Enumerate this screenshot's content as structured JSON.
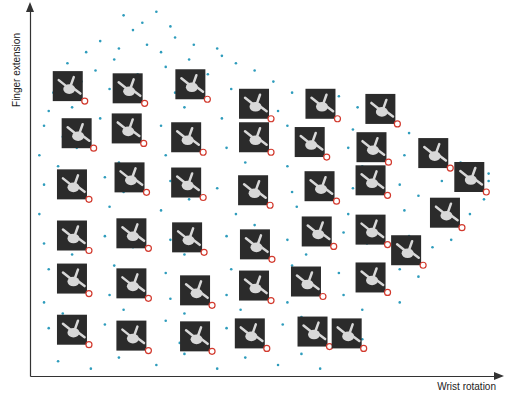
{
  "chart_data": {
    "type": "scatter",
    "x_label": "Wrist rotation",
    "y_label": "Finger extension",
    "xlim": [
      0,
      100
    ],
    "ylim": [
      0,
      100
    ],
    "xticks": [],
    "yticks": [],
    "tick_labels": false,
    "series": [
      {
        "color": "#2e9cbc",
        "marker": "dot",
        "x": [
          20,
          24,
          27,
          22,
          30,
          15,
          19,
          25,
          31,
          35,
          28,
          40,
          12,
          8,
          14,
          18,
          23,
          29,
          34,
          38,
          44,
          48,
          52,
          41,
          11,
          5,
          9,
          17,
          21,
          31,
          33,
          43,
          47,
          56,
          60,
          66,
          70,
          53,
          4,
          3,
          7,
          15,
          20,
          28,
          32,
          41,
          45,
          55,
          58,
          69,
          73,
          81,
          84,
          62,
          88,
          2,
          6,
          10,
          19,
          29,
          33,
          42,
          46,
          55,
          59,
          68,
          71,
          80,
          85,
          92,
          95,
          98,
          88,
          3,
          8,
          16,
          20,
          30,
          34,
          40,
          46,
          56,
          60,
          69,
          72,
          79,
          83,
          88,
          94,
          97,
          98,
          2,
          7,
          17,
          21,
          28,
          35,
          44,
          48,
          57,
          61,
          68,
          74,
          80,
          86,
          90,
          94,
          3,
          9,
          16,
          22,
          30,
          33,
          42,
          47,
          55,
          59,
          67,
          72,
          81,
          86,
          90,
          4,
          8,
          18,
          21,
          29,
          34,
          43,
          46,
          56,
          58,
          66,
          70,
          79,
          83,
          3,
          7,
          17,
          20,
          30,
          33,
          42,
          45,
          55,
          58,
          67,
          71,
          79,
          4,
          9,
          16,
          21,
          29,
          32,
          42,
          47,
          54,
          59,
          66,
          71,
          6,
          13,
          19,
          27,
          33,
          40,
          46,
          53,
          58,
          62
        ],
        "values": [
          98,
          96,
          99,
          94,
          95,
          91,
          89,
          90,
          92,
          90,
          88,
          89,
          88,
          85,
          83,
          86,
          82,
          84,
          86,
          82,
          85,
          83,
          80,
          87,
          80,
          77,
          73,
          78,
          76,
          77,
          73,
          78,
          75,
          77,
          74,
          76,
          73,
          72,
          72,
          68,
          65,
          70,
          67,
          68,
          65,
          70,
          66,
          68,
          64,
          67,
          65,
          66,
          64,
          71,
          62,
          60,
          57,
          62,
          58,
          60,
          56,
          62,
          58,
          57,
          61,
          62,
          57,
          60,
          57,
          58,
          56,
          55,
          60,
          52,
          49,
          54,
          50,
          53,
          48,
          51,
          54,
          50,
          53,
          51,
          54,
          52,
          49,
          53,
          51,
          48,
          53,
          44,
          41,
          46,
          42,
          45,
          40,
          44,
          41,
          46,
          42,
          44,
          40,
          45,
          43,
          46,
          44,
          36,
          33,
          38,
          35,
          37,
          33,
          38,
          34,
          37,
          33,
          39,
          36,
          38,
          35,
          37,
          29,
          25,
          30,
          26,
          28,
          24,
          29,
          26,
          30,
          25,
          28,
          24,
          29,
          27,
          20,
          17,
          22,
          18,
          21,
          17,
          22,
          18,
          20,
          16,
          22,
          18,
          20,
          13,
          10,
          14,
          11,
          15,
          9,
          13,
          10,
          14,
          11,
          13,
          10,
          4,
          2,
          5,
          3,
          6,
          2,
          5,
          3,
          6,
          2
        ]
      },
      {
        "color": "#d23a2e",
        "marker": "image",
        "x": [
          11.7,
          24.5,
          37.9,
          51.5,
          65.7,
          78.5,
          13.6,
          24.3,
          37.0,
          51.5,
          63.4,
          76.6,
          89.8,
          97.5,
          12.6,
          24.9,
          37.0,
          51.3,
          65.5,
          76.4,
          92.3,
          12.6,
          25.3,
          37.2,
          51.7,
          64.9,
          76.4,
          84.0,
          12.6,
          25.3,
          38.9,
          51.5,
          62.6,
          76.4,
          12.6,
          25.3,
          38.9,
          50.6,
          64.0,
          71.3
        ],
        "values": [
          74.7,
          74.1,
          75.2,
          69.9,
          69.9,
          68.5,
          61.9,
          63.2,
          60.8,
          60.8,
          59.5,
          58.1,
          56.5,
          50.0,
          48.0,
          49.9,
          48.5,
          46.4,
          47.5,
          49.1,
          40.3,
          34.1,
          34.7,
          33.6,
          31.7,
          35.2,
          35.7,
          30.1,
          22.4,
          21.1,
          19.2,
          20.5,
          21.6,
          22.7,
          8.5,
          6.9,
          6.7,
          7.5,
          8.0,
          7.5
        ]
      }
    ]
  }
}
